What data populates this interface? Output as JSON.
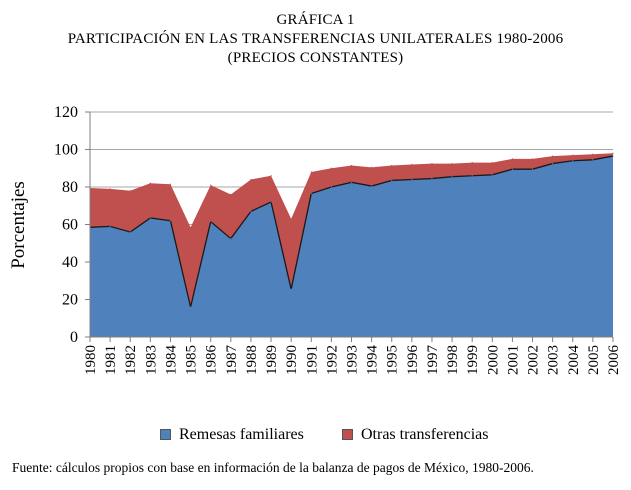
{
  "header": {
    "line1": "GRÁFICA 1",
    "line2": "PARTICIPACIÓN EN LAS TRANSFERENCIAS UNILATERALES 1980-2006",
    "line3": "(PRECIOS CONSTANTES)"
  },
  "source": "Fuente: cálculos propios con base en información de la balanza de pagos de México, 1980-2006.",
  "chart_data": {
    "type": "area",
    "stacked": true,
    "title": "PARTICIPACIÓN EN LAS TRANSFERENCIAS UNILATERALES 1980-2006",
    "xlabel": "",
    "ylabel": "Porcentajes",
    "ylim": [
      0,
      120
    ],
    "yticks": [
      0,
      20,
      40,
      60,
      80,
      100,
      120
    ],
    "grid": "horizontal",
    "legend_position": "bottom",
    "categories": [
      "1980",
      "1981",
      "1982",
      "1983",
      "1984",
      "1985",
      "1986",
      "1987",
      "1988",
      "1989",
      "1990",
      "1991",
      "1992",
      "1993",
      "1994",
      "1995",
      "1996",
      "1997",
      "1998",
      "1999",
      "2000",
      "2001",
      "2002",
      "2003",
      "2004",
      "2005",
      "2006"
    ],
    "series": [
      {
        "name": "Remesas familiares",
        "color": "#4f81bd",
        "values": [
          58.5,
          59,
          56,
          63.5,
          62,
          16,
          61.5,
          52.5,
          67,
          72,
          25.5,
          76.5,
          80,
          82.5,
          80.5,
          83.5,
          84,
          84.5,
          85.5,
          86,
          86.5,
          89.5,
          89.5,
          92.5,
          94,
          94.5,
          96.5
        ]
      },
      {
        "name": "Otras transferencias",
        "color": "#c0504d",
        "values": [
          21,
          20,
          22,
          18.5,
          19.5,
          42.5,
          19.5,
          23.5,
          17,
          14,
          37.5,
          11.5,
          10,
          9,
          10,
          8,
          8,
          8,
          7,
          7,
          6.5,
          5.5,
          5.5,
          4,
          3,
          3,
          1.5
        ]
      }
    ]
  }
}
